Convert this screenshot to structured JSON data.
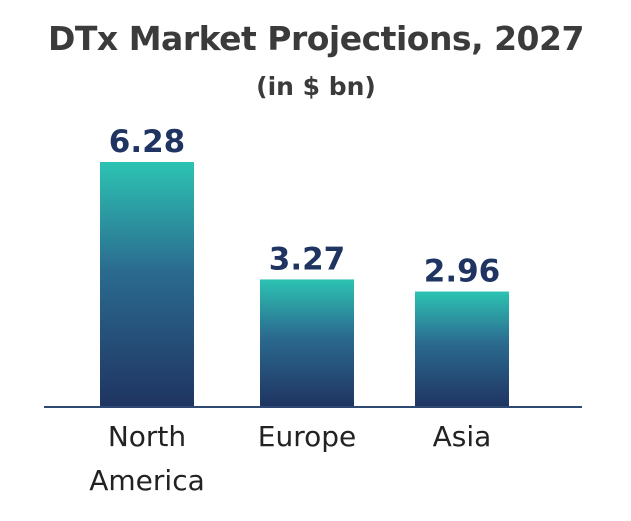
{
  "chart_data": {
    "type": "bar",
    "title": "DTx Market Projections, 2027",
    "subtitle": "(in $ bn)",
    "categories": [
      [
        "North",
        "America"
      ],
      [
        "Europe"
      ],
      [
        "Asia"
      ]
    ],
    "values": [
      6.28,
      3.27,
      2.96
    ],
    "value_labels": [
      "6.28",
      "3.27",
      "2.96"
    ],
    "xlabel": "",
    "ylabel": "",
    "ylim": [
      0,
      6.28
    ],
    "grid": false,
    "legend": "none",
    "colors": {
      "bar_top": "#2cc3b2",
      "bar_mid": "#2b6a8f",
      "bar_bottom": "#1f3461",
      "value_text": "#1f3461",
      "title_text": "#3b3b3b",
      "axis": "#2e4a72"
    }
  }
}
